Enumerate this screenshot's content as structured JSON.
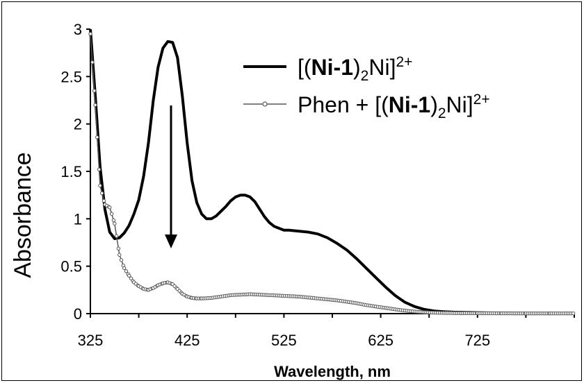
{
  "chart_data": {
    "type": "line",
    "xlabel": "Wavelength, nm",
    "ylabel": "Absorbance",
    "xlim": [
      325,
      825
    ],
    "ylim": [
      0,
      3
    ],
    "x_ticks": [
      "325",
      "425",
      "525",
      "625",
      "725"
    ],
    "y_ticks": [
      "0",
      "0.5",
      "1",
      "1.5",
      "2",
      "2.5",
      "3"
    ],
    "grid": false,
    "legend_position": "top-right",
    "annotation": "downward arrow at ~405 nm from ~2.2 to ~0.68",
    "series": [
      {
        "name_parts": [
          "[(",
          "Ni-1",
          ")",
          "2",
          "Ni]",
          "2+"
        ],
        "color": "#000000",
        "style": "thick-line",
        "points": [
          [
            325,
            3.0
          ],
          [
            330,
            2.3
          ],
          [
            335,
            1.55
          ],
          [
            340,
            1.1
          ],
          [
            345,
            0.86
          ],
          [
            350,
            0.79
          ],
          [
            355,
            0.8
          ],
          [
            360,
            0.85
          ],
          [
            365,
            0.93
          ],
          [
            370,
            1.05
          ],
          [
            375,
            1.2
          ],
          [
            380,
            1.45
          ],
          [
            385,
            1.8
          ],
          [
            390,
            2.25
          ],
          [
            395,
            2.6
          ],
          [
            400,
            2.8
          ],
          [
            405,
            2.87
          ],
          [
            410,
            2.86
          ],
          [
            415,
            2.7
          ],
          [
            420,
            2.3
          ],
          [
            425,
            1.8
          ],
          [
            430,
            1.4
          ],
          [
            435,
            1.17
          ],
          [
            440,
            1.05
          ],
          [
            445,
            1.0
          ],
          [
            450,
            1.0
          ],
          [
            455,
            1.03
          ],
          [
            460,
            1.08
          ],
          [
            465,
            1.13
          ],
          [
            470,
            1.19
          ],
          [
            475,
            1.23
          ],
          [
            480,
            1.25
          ],
          [
            485,
            1.25
          ],
          [
            490,
            1.23
          ],
          [
            495,
            1.18
          ],
          [
            500,
            1.1
          ],
          [
            505,
            1.02
          ],
          [
            510,
            0.96
          ],
          [
            515,
            0.92
          ],
          [
            520,
            0.9
          ],
          [
            525,
            0.88
          ],
          [
            530,
            0.88
          ],
          [
            540,
            0.87
          ],
          [
            550,
            0.86
          ],
          [
            560,
            0.84
          ],
          [
            570,
            0.8
          ],
          [
            580,
            0.74
          ],
          [
            590,
            0.67
          ],
          [
            600,
            0.58
          ],
          [
            610,
            0.48
          ],
          [
            620,
            0.38
          ],
          [
            630,
            0.28
          ],
          [
            640,
            0.19
          ],
          [
            650,
            0.12
          ],
          [
            660,
            0.075
          ],
          [
            670,
            0.045
          ],
          [
            680,
            0.028
          ],
          [
            690,
            0.02
          ],
          [
            700,
            0.015
          ],
          [
            725,
            0.01
          ],
          [
            750,
            0.006
          ],
          [
            775,
            0.004
          ],
          [
            800,
            0.003
          ],
          [
            825,
            0.003
          ]
        ]
      },
      {
        "name_parts": [
          "Phen + [(",
          "Ni-1",
          ")",
          "2",
          "Ni]",
          "2+"
        ],
        "color": "#555555",
        "style": "thin-line-circle-markers",
        "points": [
          [
            325,
            2.95
          ],
          [
            330,
            2.2
          ],
          [
            335,
            1.35
          ],
          [
            340,
            1.15
          ],
          [
            345,
            1.12
          ],
          [
            350,
            0.95
          ],
          [
            355,
            0.62
          ],
          [
            360,
            0.48
          ],
          [
            365,
            0.4
          ],
          [
            370,
            0.33
          ],
          [
            375,
            0.29
          ],
          [
            380,
            0.26
          ],
          [
            385,
            0.25
          ],
          [
            390,
            0.27
          ],
          [
            395,
            0.3
          ],
          [
            400,
            0.32
          ],
          [
            405,
            0.33
          ],
          [
            410,
            0.31
          ],
          [
            415,
            0.26
          ],
          [
            420,
            0.21
          ],
          [
            425,
            0.18
          ],
          [
            430,
            0.165
          ],
          [
            435,
            0.16
          ],
          [
            440,
            0.16
          ],
          [
            450,
            0.165
          ],
          [
            460,
            0.18
          ],
          [
            470,
            0.195
          ],
          [
            480,
            0.2
          ],
          [
            490,
            0.205
          ],
          [
            500,
            0.2
          ],
          [
            510,
            0.195
          ],
          [
            520,
            0.19
          ],
          [
            530,
            0.185
          ],
          [
            540,
            0.18
          ],
          [
            550,
            0.17
          ],
          [
            560,
            0.16
          ],
          [
            570,
            0.15
          ],
          [
            580,
            0.14
          ],
          [
            590,
            0.125
          ],
          [
            600,
            0.11
          ],
          [
            610,
            0.09
          ],
          [
            620,
            0.075
          ],
          [
            630,
            0.06
          ],
          [
            640,
            0.045
          ],
          [
            650,
            0.032
          ],
          [
            660,
            0.022
          ],
          [
            670,
            0.015
          ],
          [
            680,
            0.01
          ],
          [
            700,
            0.006
          ],
          [
            725,
            0.004
          ],
          [
            750,
            0.003
          ],
          [
            775,
            0.002
          ],
          [
            800,
            0.002
          ],
          [
            825,
            0.002
          ]
        ]
      }
    ]
  }
}
